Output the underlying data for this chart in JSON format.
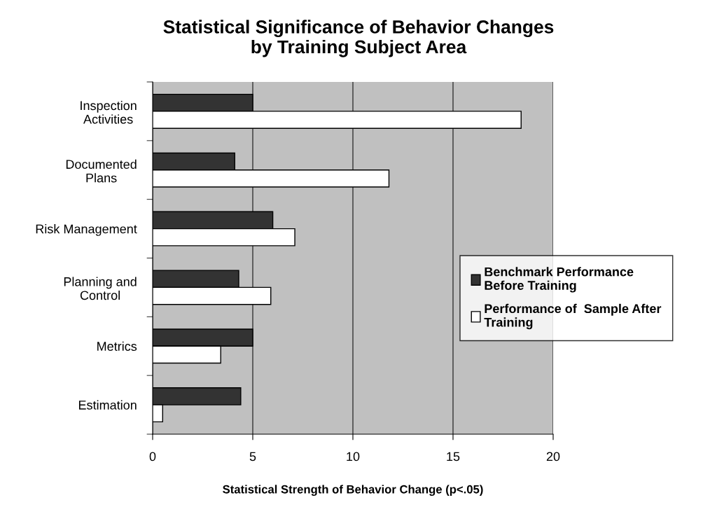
{
  "chart_data": {
    "type": "bar",
    "orientation": "horizontal",
    "title": "Statistical Significance of Behavior Changes\nby Training Subject Area",
    "xlabel": "Statistical Strength of Behavior Change (p<.05)",
    "categories": [
      "Inspection\nActivities",
      "Documented\nPlans",
      "Risk Management",
      "Planning and\nControl",
      "Metrics",
      "Estimation"
    ],
    "series": [
      {
        "name": "Benchmark Performance\nBefore Training",
        "color": "#333333",
        "values": [
          5.0,
          4.1,
          6.0,
          4.3,
          5.0,
          4.4
        ]
      },
      {
        "name": "Performance of  Sample After\nTraining",
        "color": "#ffffff",
        "values": [
          18.4,
          11.8,
          7.1,
          5.9,
          3.4,
          0.5
        ]
      }
    ],
    "xlim": [
      0,
      20
    ],
    "xticks": [
      0,
      5,
      10,
      15,
      20
    ],
    "grid": "x",
    "legend": "right"
  }
}
